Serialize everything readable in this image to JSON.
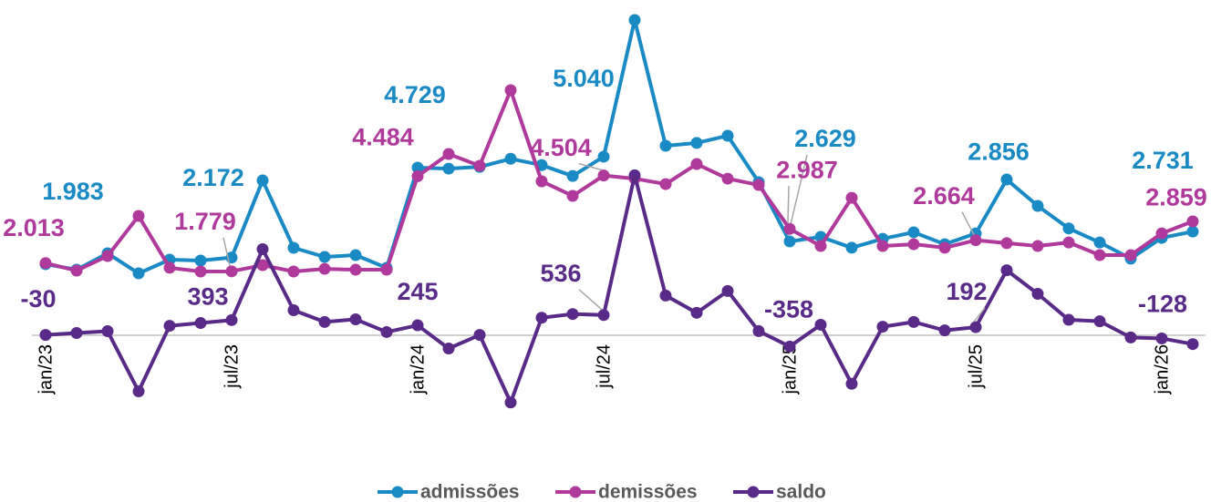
{
  "chart_data": {
    "type": "line",
    "categories": [
      "jan/23",
      null,
      null,
      null,
      null,
      null,
      "jul/23",
      null,
      null,
      null,
      null,
      null,
      "jan/24",
      null,
      null,
      null,
      null,
      null,
      "jul/24",
      null,
      null,
      null,
      null,
      null,
      "jan/25",
      null,
      null,
      null,
      null,
      null,
      "jul/25",
      null,
      null,
      null,
      null,
      null,
      "jan/26",
      null
    ],
    "series": [
      {
        "name": "admissões",
        "color": "#1a8ac4",
        "values": [
          1983,
          1826,
          2292,
          1722,
          2111,
          2085,
          2172,
          4364,
          2448,
          2189,
          2240,
          1878,
          4729,
          4700,
          4750,
          4980,
          4800,
          4490,
          5040,
          8925,
          5350,
          5430,
          5635,
          4315,
          2629,
          2760,
          2450,
          2705,
          2890,
          2550,
          2856,
          4390,
          3640,
          3000,
          2600,
          2140,
          2731,
          2910
        ],
        "value_labels": [
          "1.983",
          null,
          null,
          null,
          null,
          null,
          "2.172",
          null,
          null,
          null,
          null,
          null,
          "4.729",
          null,
          null,
          null,
          null,
          null,
          "5.040",
          null,
          null,
          null,
          null,
          null,
          "2.629",
          null,
          null,
          null,
          null,
          null,
          "2.856",
          null,
          null,
          null,
          null,
          null,
          "2.731",
          null
        ]
      },
      {
        "name": "demissões",
        "color": "#b0399c",
        "values": [
          2013,
          1800,
          2215,
          3355,
          1880,
          1775,
          1779,
          1955,
          1775,
          1850,
          1825,
          1825,
          4484,
          5115,
          4780,
          6930,
          4340,
          3925,
          4504,
          4415,
          4260,
          4830,
          4415,
          4235,
          2987,
          2500,
          3870,
          2500,
          2550,
          2450,
          2664,
          2580,
          2500,
          2600,
          2240,
          2240,
          2859,
          3200
        ],
        "value_labels": [
          "2.013",
          null,
          null,
          null,
          null,
          null,
          "1.779",
          null,
          null,
          null,
          null,
          null,
          "4.484",
          null,
          null,
          null,
          null,
          null,
          "4.504",
          null,
          null,
          null,
          null,
          null,
          "2.987",
          null,
          null,
          null,
          null,
          null,
          "2.664",
          null,
          null,
          null,
          null,
          null,
          "2.859",
          null
        ]
      },
      {
        "name": "saldo",
        "color": "#5a2a88",
        "values": [
          -30,
          26,
          77,
          -1633,
          231,
          310,
          393,
          2409,
          673,
          339,
          415,
          53,
          245,
          -415,
          -30,
          -1950,
          460,
          565,
          536,
          4510,
          1090,
          600,
          1220,
          80,
          -358,
          260,
          -1420,
          205,
          340,
          100,
          192,
          1810,
          1140,
          400,
          360,
          -100,
          -128,
          -290
        ],
        "value_labels": [
          "-30",
          null,
          null,
          null,
          null,
          null,
          "393",
          null,
          null,
          null,
          null,
          null,
          "245",
          null,
          null,
          null,
          null,
          null,
          "536",
          null,
          null,
          null,
          null,
          null,
          "-358",
          null,
          null,
          null,
          null,
          null,
          "192",
          null,
          null,
          null,
          null,
          null,
          "-128",
          null
        ]
      }
    ],
    "legend": "bottom"
  }
}
